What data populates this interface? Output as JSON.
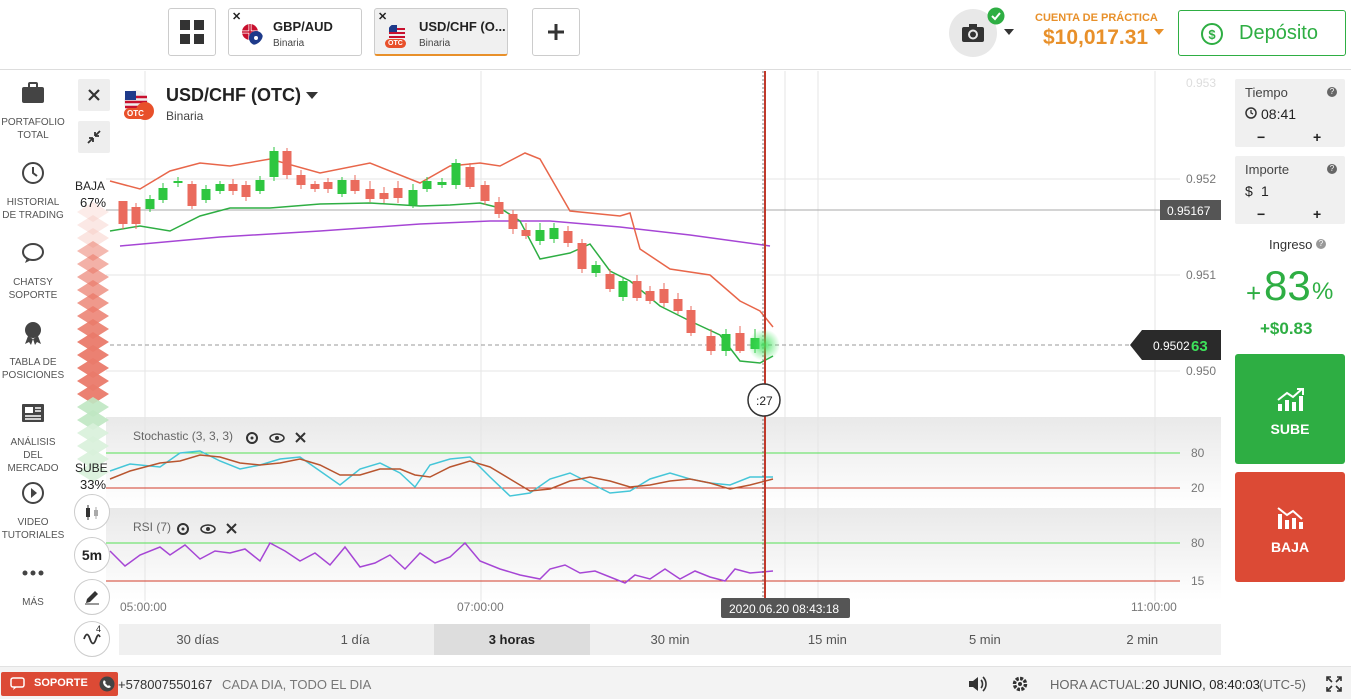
{
  "topbar": {
    "tabs": [
      {
        "name": "GBP/AUD",
        "type": "Binaria"
      },
      {
        "name": "USD/CHF (O...",
        "type": "Binaria",
        "badge": "OTC"
      }
    ],
    "account_label": "CUENTA DE PRÁCTICA",
    "balance": "$10,017.31",
    "deposit_label": "Depósito"
  },
  "sidebar": {
    "items": [
      {
        "label": "PORTAFOLIO TOTAL",
        "icon": "briefcase-icon"
      },
      {
        "label": "HISTORIAL DE TRADING",
        "icon": "history-icon"
      },
      {
        "label": "CHATSY SOPORTE",
        "icon": "chat-icon"
      },
      {
        "label": "TABLA DE POSICIONES",
        "icon": "trophy-icon"
      },
      {
        "label": "ANÁLISIS DEL MERCADO",
        "icon": "news-icon"
      },
      {
        "label": "VIDEO TUTORIALES",
        "icon": "play-icon"
      },
      {
        "label": "MÁS",
        "icon": "more-icon"
      }
    ]
  },
  "chart": {
    "asset_name": "USD/CHF (OTC)",
    "asset_type": "Binaria",
    "otc_badge": "OTC",
    "sentiment_down_label": "BAJA",
    "sentiment_down_pct": "67%",
    "sentiment_up_label": "SUBE",
    "sentiment_up_pct": "33%",
    "price_levels": [
      "0.953",
      "0.952",
      "0.951",
      "0.950"
    ],
    "level_tag": "0.95167",
    "current_price_main": "0.9502",
    "current_price_last": "63",
    "countdown": ":27",
    "stochastic_label": "Stochastic (3, 3, 3)",
    "stochastic_levels": [
      "80",
      "20"
    ],
    "rsi_label": "RSI (7)",
    "rsi_levels": [
      "80",
      "15"
    ],
    "time_labels": [
      "05:00:00",
      "07:00:00",
      "11:00:00"
    ],
    "cursor_time": "2020.06.20 08:43:18",
    "timeframe_button": "5m",
    "indicator_count": "4",
    "timeframes": [
      "30 días",
      "1 día",
      "3 horas",
      "30 min",
      "15 min",
      "5 min",
      "2 min"
    ],
    "active_timeframe": "3 horas"
  },
  "trade_panel": {
    "time_label": "Tiempo",
    "time_value": "08:41",
    "amount_label": "Importe",
    "amount_currency": "$",
    "amount_value": "1",
    "minus": "−",
    "plus": "+",
    "help": "?",
    "income_label": "Ingreso",
    "income_plus": "+",
    "income_pct": "83",
    "income_pct_sign": "%",
    "income_amount": "+$0.83",
    "up_label": "SUBE",
    "down_label": "BAJA",
    "up_color": "#2eae43",
    "down_color": "#dc4a35"
  },
  "bottombar": {
    "support_label": "SOPORTE",
    "phone": "+578007550167",
    "hours": "CADA DIA, TODO EL DIA",
    "time_label": "HORA ACTUAL:",
    "time_value": "20 JUNIO, 08:40:03",
    "tz": "(UTC-5)"
  }
}
